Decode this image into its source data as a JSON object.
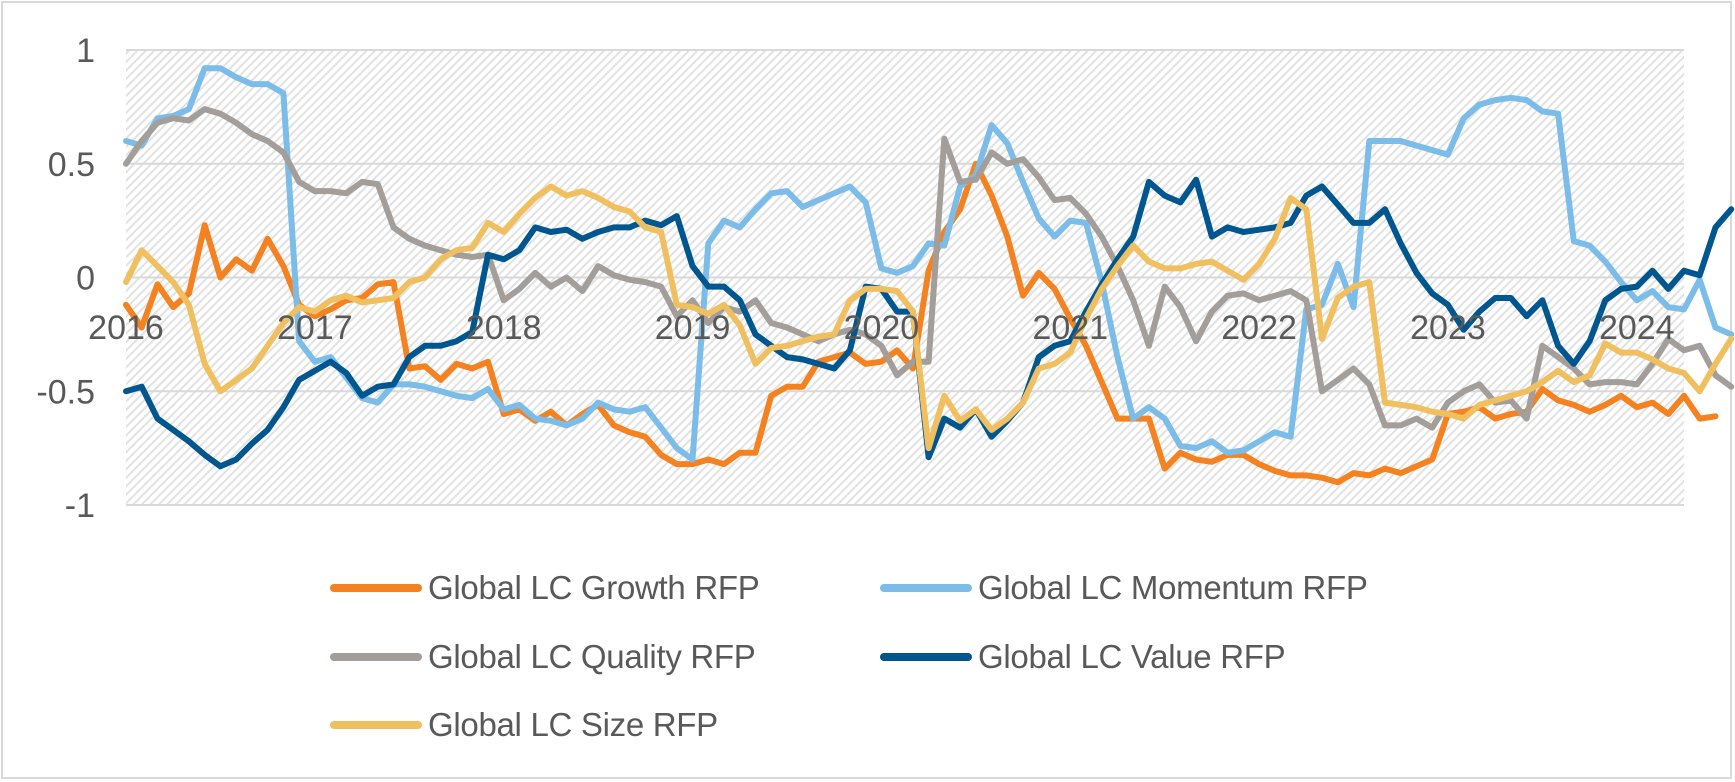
{
  "chart_data": {
    "type": "line",
    "title": "",
    "xlabel": "",
    "ylabel": "",
    "ylim": [
      -1,
      1
    ],
    "yticks": [
      1,
      0.5,
      0,
      -0.5,
      -1
    ],
    "ytick_labels": [
      "1",
      "0.5",
      "0",
      "-0.5",
      "-1"
    ],
    "xlim": [
      2016.0,
      2024.25
    ],
    "xticks": [
      2016,
      2017,
      2018,
      2019,
      2020,
      2021,
      2022,
      2023,
      2024
    ],
    "xtick_labels": [
      "2016",
      "2017",
      "2018",
      "2019",
      "2020",
      "2021",
      "2022",
      "2023",
      "2024"
    ],
    "grid": true,
    "legend_position": "bottom",
    "x_start": 2016.0,
    "x_step_months": 1,
    "series": [
      {
        "name": "Global LC Growth RFP",
        "color": "#F58220",
        "values": [
          -0.12,
          -0.22,
          -0.03,
          -0.13,
          -0.07,
          0.23,
          0.0,
          0.08,
          0.03,
          0.17,
          0.05,
          -0.12,
          -0.17,
          -0.14,
          -0.1,
          -0.09,
          -0.03,
          -0.02,
          -0.4,
          -0.39,
          -0.45,
          -0.38,
          -0.4,
          -0.37,
          -0.6,
          -0.58,
          -0.63,
          -0.59,
          -0.65,
          -0.6,
          -0.56,
          -0.65,
          -0.68,
          -0.7,
          -0.78,
          -0.82,
          -0.82,
          -0.8,
          -0.82,
          -0.77,
          -0.77,
          -0.52,
          -0.48,
          -0.48,
          -0.37,
          -0.35,
          -0.33,
          -0.38,
          -0.37,
          -0.32,
          -0.4,
          0.03,
          0.2,
          0.3,
          0.5,
          0.36,
          0.18,
          -0.08,
          0.02,
          -0.05,
          -0.18,
          -0.3,
          -0.46,
          -0.62,
          -0.62,
          -0.62,
          -0.84,
          -0.77,
          -0.8,
          -0.81,
          -0.78,
          -0.78,
          -0.82,
          -0.85,
          -0.87,
          -0.87,
          -0.88,
          -0.9,
          -0.86,
          -0.87,
          -0.84,
          -0.86,
          -0.83,
          -0.8,
          -0.6,
          -0.59,
          -0.57,
          -0.62,
          -0.6,
          -0.59,
          -0.49,
          -0.54,
          -0.56,
          -0.59,
          -0.56,
          -0.52,
          -0.57,
          -0.55,
          -0.6,
          -0.52,
          -0.62,
          -0.61
        ]
      },
      {
        "name": "Global LC Momentum RFP",
        "color": "#7BBDE8",
        "values": [
          0.6,
          0.58,
          0.7,
          0.71,
          0.74,
          0.92,
          0.92,
          0.88,
          0.85,
          0.85,
          0.81,
          -0.28,
          -0.37,
          -0.35,
          -0.44,
          -0.53,
          -0.55,
          -0.47,
          -0.47,
          -0.48,
          -0.5,
          -0.52,
          -0.53,
          -0.49,
          -0.58,
          -0.56,
          -0.62,
          -0.63,
          -0.65,
          -0.62,
          -0.55,
          -0.58,
          -0.59,
          -0.57,
          -0.66,
          -0.75,
          -0.8,
          0.15,
          0.25,
          0.22,
          0.3,
          0.37,
          0.38,
          0.31,
          0.34,
          0.37,
          0.4,
          0.33,
          0.04,
          0.02,
          0.05,
          0.15,
          0.14,
          0.4,
          0.45,
          0.67,
          0.59,
          0.42,
          0.26,
          0.18,
          0.25,
          0.24,
          -0.02,
          -0.35,
          -0.62,
          -0.57,
          -0.62,
          -0.74,
          -0.75,
          -0.72,
          -0.77,
          -0.76,
          -0.72,
          -0.68,
          -0.7,
          -0.14,
          -0.12,
          0.06,
          -0.13,
          0.6,
          0.6,
          0.6,
          0.58,
          0.56,
          0.54,
          0.7,
          0.76,
          0.78,
          0.79,
          0.78,
          0.73,
          0.72,
          0.16,
          0.14,
          0.07,
          -0.02,
          -0.1,
          -0.06,
          -0.13,
          -0.14,
          -0.01,
          -0.22,
          -0.25
        ]
      },
      {
        "name": "Global LC Quality RFP",
        "color": "#A39E99",
        "values": [
          0.5,
          0.6,
          0.68,
          0.7,
          0.69,
          0.74,
          0.72,
          0.68,
          0.63,
          0.6,
          0.55,
          0.42,
          0.38,
          0.38,
          0.37,
          0.42,
          0.41,
          0.22,
          0.17,
          0.14,
          0.12,
          0.1,
          0.09,
          0.1,
          -0.1,
          -0.05,
          0.02,
          -0.04,
          0.0,
          -0.06,
          0.05,
          0.01,
          -0.01,
          -0.02,
          -0.04,
          -0.17,
          -0.1,
          -0.2,
          -0.13,
          -0.15,
          -0.1,
          -0.2,
          -0.22,
          -0.25,
          -0.28,
          -0.25,
          -0.23,
          -0.25,
          -0.3,
          -0.43,
          -0.37,
          -0.37,
          0.61,
          0.42,
          0.43,
          0.55,
          0.5,
          0.52,
          0.44,
          0.34,
          0.35,
          0.28,
          0.18,
          0.05,
          -0.1,
          -0.3,
          -0.04,
          -0.13,
          -0.28,
          -0.15,
          -0.08,
          -0.07,
          -0.1,
          -0.08,
          -0.06,
          -0.1,
          -0.5,
          -0.45,
          -0.4,
          -0.47,
          -0.65,
          -0.65,
          -0.62,
          -0.66,
          -0.55,
          -0.5,
          -0.47,
          -0.55,
          -0.54,
          -0.62,
          -0.3,
          -0.35,
          -0.4,
          -0.47,
          -0.46,
          -0.46,
          -0.47,
          -0.38,
          -0.27,
          -0.32,
          -0.3,
          -0.43,
          -0.48
        ]
      },
      {
        "name": "Global LC Value RFP",
        "color": "#00568F",
        "values": [
          -0.5,
          -0.48,
          -0.62,
          -0.67,
          -0.72,
          -0.78,
          -0.83,
          -0.8,
          -0.73,
          -0.67,
          -0.57,
          -0.45,
          -0.41,
          -0.37,
          -0.42,
          -0.52,
          -0.48,
          -0.47,
          -0.35,
          -0.3,
          -0.3,
          -0.28,
          -0.24,
          0.1,
          0.08,
          0.12,
          0.22,
          0.2,
          0.21,
          0.17,
          0.2,
          0.22,
          0.22,
          0.25,
          0.23,
          0.27,
          0.05,
          -0.04,
          -0.04,
          -0.1,
          -0.25,
          -0.3,
          -0.35,
          -0.36,
          -0.38,
          -0.4,
          -0.32,
          -0.04,
          -0.05,
          -0.15,
          -0.15,
          -0.79,
          -0.62,
          -0.66,
          -0.58,
          -0.7,
          -0.63,
          -0.55,
          -0.35,
          -0.3,
          -0.28,
          -0.15,
          -0.03,
          0.08,
          0.18,
          0.42,
          0.36,
          0.33,
          0.43,
          0.18,
          0.22,
          0.2,
          0.21,
          0.22,
          0.24,
          0.36,
          0.4,
          0.32,
          0.24,
          0.24,
          0.3,
          0.15,
          0.02,
          -0.07,
          -0.12,
          -0.23,
          -0.15,
          -0.09,
          -0.09,
          -0.17,
          -0.1,
          -0.3,
          -0.38,
          -0.28,
          -0.1,
          -0.05,
          -0.04,
          0.03,
          -0.05,
          0.03,
          0.01,
          0.22,
          0.3
        ]
      },
      {
        "name": "Global LC Size RFP",
        "color": "#F0C060",
        "values": [
          -0.02,
          0.12,
          0.05,
          -0.02,
          -0.12,
          -0.38,
          -0.5,
          -0.45,
          -0.4,
          -0.3,
          -0.2,
          -0.13,
          -0.15,
          -0.1,
          -0.08,
          -0.11,
          -0.1,
          -0.09,
          -0.02,
          0.0,
          0.08,
          0.12,
          0.13,
          0.24,
          0.2,
          0.28,
          0.35,
          0.4,
          0.36,
          0.38,
          0.35,
          0.31,
          0.29,
          0.22,
          0.2,
          -0.12,
          -0.13,
          -0.16,
          -0.12,
          -0.21,
          -0.38,
          -0.31,
          -0.3,
          -0.28,
          -0.26,
          -0.25,
          -0.1,
          -0.05,
          -0.05,
          -0.06,
          -0.15,
          -0.75,
          -0.52,
          -0.63,
          -0.58,
          -0.67,
          -0.62,
          -0.55,
          -0.4,
          -0.38,
          -0.33,
          -0.18,
          -0.05,
          0.05,
          0.14,
          0.07,
          0.04,
          0.04,
          0.06,
          0.07,
          0.03,
          -0.01,
          0.06,
          0.17,
          0.35,
          0.3,
          -0.27,
          -0.09,
          -0.04,
          -0.02,
          -0.55,
          -0.56,
          -0.57,
          -0.59,
          -0.6,
          -0.62,
          -0.56,
          -0.54,
          -0.52,
          -0.5,
          -0.46,
          -0.41,
          -0.46,
          -0.43,
          -0.29,
          -0.33,
          -0.33,
          -0.36,
          -0.4,
          -0.42,
          -0.5,
          -0.38,
          -0.27
        ]
      }
    ]
  },
  "legend": {
    "items": [
      {
        "label": "Global LC Growth RFP",
        "color": "#F58220"
      },
      {
        "label": "Global LC Momentum RFP",
        "color": "#7BBDE8"
      },
      {
        "label": "Global LC Quality RFP",
        "color": "#A39E99"
      },
      {
        "label": "Global LC Value RFP",
        "color": "#00568F"
      },
      {
        "label": "Global LC Size RFP",
        "color": "#F0C060"
      }
    ]
  }
}
